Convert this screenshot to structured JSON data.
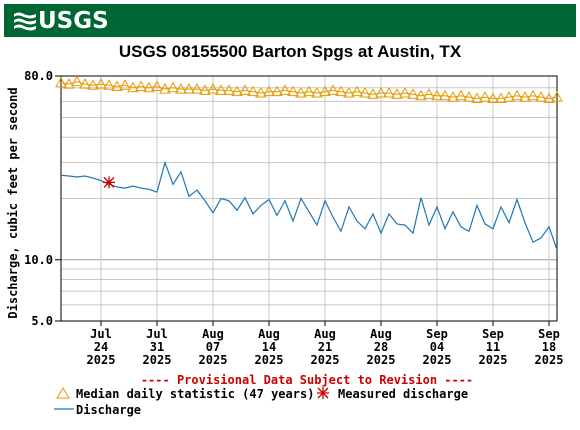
{
  "header": {
    "logo_text": "USGS",
    "title": "USGS 08155500 Barton Spgs at Austin, TX"
  },
  "colors": {
    "banner": "#006633",
    "median": "#E89A00",
    "discharge": "#1F77B4",
    "measured": "#CC0000",
    "provisional": "#CC0000"
  },
  "chart_data": {
    "type": "line",
    "title": "USGS 08155500 Barton Spgs at Austin, TX",
    "ylabel": "Discharge, cubic feet per second",
    "yscale": "log",
    "ylim": [
      5.0,
      80.0
    ],
    "ytick_labels": [
      "80.0",
      "10.0",
      "5.0"
    ],
    "xlim": [
      "2025-07-19",
      "2025-09-19"
    ],
    "xticks": [
      {
        "date": "2025-07-24",
        "mon": "Jul",
        "day": "24",
        "year": "2025"
      },
      {
        "date": "2025-07-31",
        "mon": "Jul",
        "day": "31",
        "year": "2025"
      },
      {
        "date": "2025-08-07",
        "mon": "Aug",
        "day": "07",
        "year": "2025"
      },
      {
        "date": "2025-08-14",
        "mon": "Aug",
        "day": "14",
        "year": "2025"
      },
      {
        "date": "2025-08-21",
        "mon": "Aug",
        "day": "21",
        "year": "2025"
      },
      {
        "date": "2025-08-28",
        "mon": "Aug",
        "day": "28",
        "year": "2025"
      },
      {
        "date": "2025-09-04",
        "mon": "Sep",
        "day": "04",
        "year": "2025"
      },
      {
        "date": "2025-09-11",
        "mon": "Sep",
        "day": "11",
        "year": "2025"
      },
      {
        "date": "2025-09-18",
        "mon": "Sep",
        "day": "18",
        "year": "2025"
      }
    ],
    "grid": true,
    "annotation": "---- Provisional Data Subject to Revision ----",
    "series": [
      {
        "name": "Median daily statistic (47 years)",
        "marker": "triangle",
        "x": [
          "2025-07-19",
          "2025-07-20",
          "2025-07-21",
          "2025-07-22",
          "2025-07-23",
          "2025-07-24",
          "2025-07-25",
          "2025-07-26",
          "2025-07-27",
          "2025-07-28",
          "2025-07-29",
          "2025-07-30",
          "2025-07-31",
          "2025-08-01",
          "2025-08-02",
          "2025-08-03",
          "2025-08-04",
          "2025-08-05",
          "2025-08-06",
          "2025-08-07",
          "2025-08-08",
          "2025-08-09",
          "2025-08-10",
          "2025-08-11",
          "2025-08-12",
          "2025-08-13",
          "2025-08-14",
          "2025-08-15",
          "2025-08-16",
          "2025-08-17",
          "2025-08-18",
          "2025-08-19",
          "2025-08-20",
          "2025-08-21",
          "2025-08-22",
          "2025-08-23",
          "2025-08-24",
          "2025-08-25",
          "2025-08-26",
          "2025-08-27",
          "2025-08-28",
          "2025-08-29",
          "2025-08-30",
          "2025-08-31",
          "2025-09-01",
          "2025-09-02",
          "2025-09-03",
          "2025-09-04",
          "2025-09-05",
          "2025-09-06",
          "2025-09-07",
          "2025-09-08",
          "2025-09-09",
          "2025-09-10",
          "2025-09-11",
          "2025-09-12",
          "2025-09-13",
          "2025-09-14",
          "2025-09-15",
          "2025-09-16",
          "2025-09-17",
          "2025-09-18",
          "2025-09-19"
        ],
        "values": [
          74,
          73,
          75,
          73,
          72,
          73,
          72,
          71,
          72,
          70,
          71,
          70,
          71,
          69,
          70,
          69,
          69,
          69,
          68,
          69,
          68,
          68,
          67,
          68,
          67,
          66,
          67,
          67,
          68,
          67,
          66,
          67,
          66,
          67,
          68,
          67,
          66,
          67,
          66,
          65,
          66,
          66,
          65,
          66,
          65,
          64,
          65,
          64,
          64,
          63,
          64,
          63,
          62,
          63,
          62,
          62,
          63,
          64,
          63,
          64,
          63,
          62,
          63
        ]
      },
      {
        "name": "Discharge",
        "x": [
          "2025-07-19",
          "2025-07-20",
          "2025-07-21",
          "2025-07-22",
          "2025-07-23",
          "2025-07-24",
          "2025-07-25",
          "2025-07-26",
          "2025-07-27",
          "2025-07-28",
          "2025-07-29",
          "2025-07-30",
          "2025-07-31",
          "2025-08-01",
          "2025-08-02",
          "2025-08-03",
          "2025-08-04",
          "2025-08-05",
          "2025-08-06",
          "2025-08-07",
          "2025-08-08",
          "2025-08-09",
          "2025-08-10",
          "2025-08-11",
          "2025-08-12",
          "2025-08-13",
          "2025-08-14",
          "2025-08-15",
          "2025-08-16",
          "2025-08-17",
          "2025-08-18",
          "2025-08-19",
          "2025-08-20",
          "2025-08-21",
          "2025-08-22",
          "2025-08-23",
          "2025-08-24",
          "2025-08-25",
          "2025-08-26",
          "2025-08-27",
          "2025-08-28",
          "2025-08-29",
          "2025-08-30",
          "2025-08-31",
          "2025-09-01",
          "2025-09-02",
          "2025-09-03",
          "2025-09-04",
          "2025-09-05",
          "2025-09-06",
          "2025-09-07",
          "2025-09-08",
          "2025-09-09",
          "2025-09-10",
          "2025-09-11",
          "2025-09-12",
          "2025-09-13",
          "2025-09-14",
          "2025-09-15",
          "2025-09-16",
          "2025-09-17",
          "2025-09-18",
          "2025-09-19"
        ],
        "values": [
          26,
          25.8,
          25.5,
          25.8,
          25.2,
          24.5,
          23.5,
          22.8,
          22.5,
          23,
          22.5,
          22.2,
          21.5,
          30,
          23.5,
          27,
          20.5,
          22,
          19.5,
          17,
          20,
          19.5,
          17.5,
          20.2,
          16.8,
          18.5,
          19.8,
          16.5,
          19.5,
          15.5,
          20,
          17.2,
          14.8,
          19.5,
          16.2,
          13.8,
          18.2,
          15.5,
          14.2,
          16.8,
          13.5,
          16.8,
          15,
          14.8,
          13.5,
          20.2,
          14.8,
          18.2,
          14.2,
          17.2,
          14.5,
          13.8,
          18.5,
          15,
          14.2,
          18.2,
          15.2,
          19.8,
          15.2,
          12.2,
          12.8,
          14.5,
          11.2
        ]
      },
      {
        "name": "Measured discharge",
        "marker": "asterisk",
        "x": [
          "2025-07-25"
        ],
        "values": [
          24
        ]
      }
    ]
  },
  "legend": {
    "median_label": "Median daily statistic (47 years)",
    "measured_label": "Measured discharge",
    "discharge_label": "Discharge"
  }
}
